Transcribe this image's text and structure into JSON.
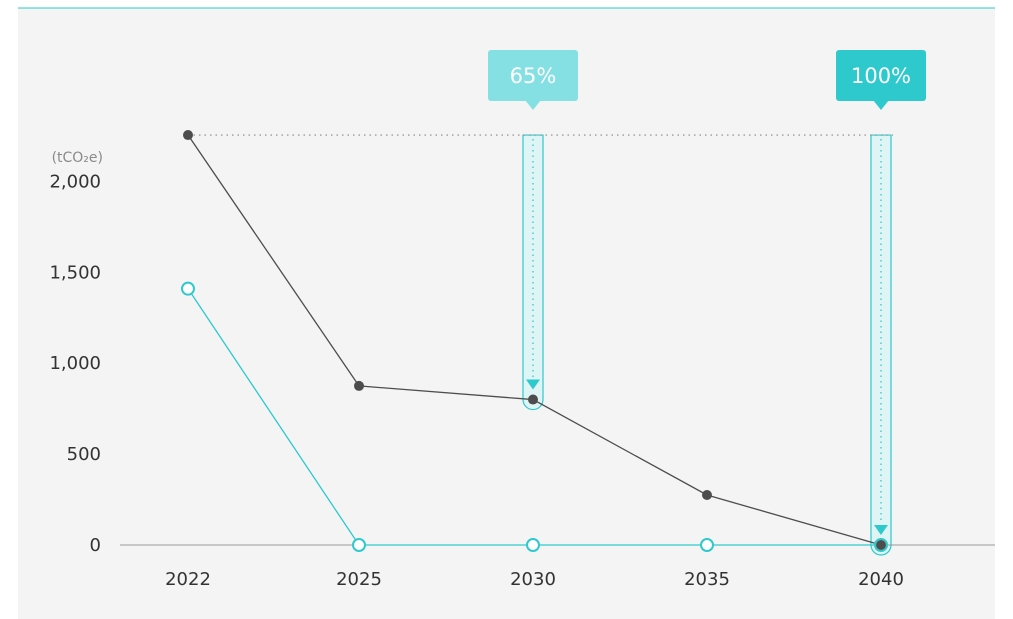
{
  "chart_data": {
    "type": "line",
    "unit_label": "(tCO₂e)",
    "categories": [
      "2022",
      "2025",
      "2030",
      "2035",
      "2040"
    ],
    "yticks": [
      "0",
      "500",
      "1,000",
      "1,500",
      "2,000"
    ],
    "ytick_values": [
      0,
      500,
      1000,
      1500,
      2000
    ],
    "ylim": [
      0,
      2300
    ],
    "grid": false,
    "series": [
      {
        "values": [
          2255,
          875,
          800,
          275,
          0
        ],
        "color": "#4d4d4d",
        "marker": "filled"
      },
      {
        "values": [
          1410,
          0,
          0,
          0,
          0
        ],
        "color": "#2ec9cc",
        "marker": "hollow"
      }
    ],
    "reference_line": {
      "value": 2255
    },
    "callouts": [
      {
        "category_index": 2,
        "label": "65%",
        "color": "#84e0e2",
        "target_value": 800
      },
      {
        "category_index": 4,
        "label": "100%",
        "color": "#2ec9cc",
        "target_value": 0
      }
    ],
    "colors": {
      "background": "#f4f4f4",
      "axis": "#9a9a9a",
      "accent": "#2ec9cc",
      "band_fill": "#dff4f5"
    }
  }
}
